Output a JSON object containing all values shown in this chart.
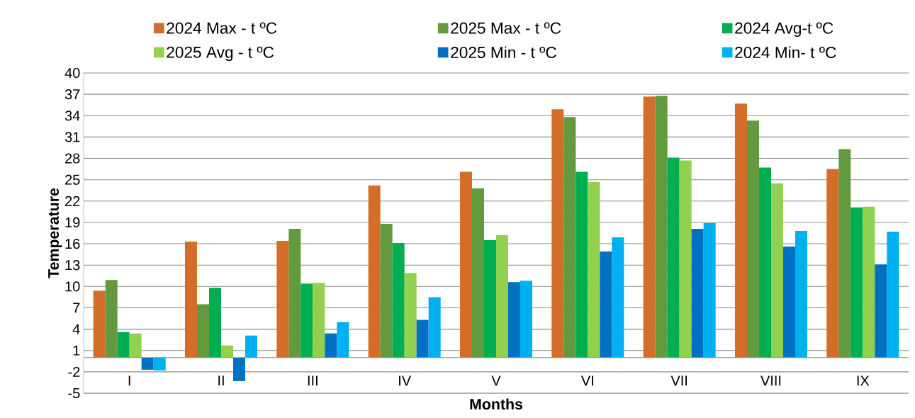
{
  "chart_data": {
    "type": "bar",
    "xlabel": "Months",
    "ylabel": "Temperature",
    "categories": [
      "I",
      "II",
      "III",
      "IV",
      "V",
      "VI",
      "VII",
      "VIII",
      "IX"
    ],
    "series": [
      {
        "name": "2024 Max - t ºC",
        "color": "#d26e2a",
        "values": [
          9.4,
          16.3,
          16.4,
          24.2,
          26.1,
          34.9,
          36.7,
          35.7,
          26.5
        ]
      },
      {
        "name": "2025 Max - t ºC",
        "color": "#629a3d",
        "values": [
          10.9,
          7.5,
          18.1,
          18.8,
          23.8,
          33.8,
          36.8,
          33.3,
          29.3
        ]
      },
      {
        "name": "2024 Avg-t ºC",
        "color": "#00ad4f",
        "values": [
          3.6,
          9.8,
          10.4,
          16.1,
          16.5,
          26.1,
          28.1,
          26.7,
          21.1
        ]
      },
      {
        "name": "2025 Avg - t ºC",
        "color": "#92d050",
        "values": [
          3.4,
          1.7,
          10.5,
          11.9,
          17.2,
          24.7,
          27.7,
          24.5,
          21.2
        ]
      },
      {
        "name": "2025 Min - t ºC",
        "color": "#0070c0",
        "values": [
          -1.7,
          -3.3,
          3.4,
          5.3,
          10.6,
          14.9,
          18.1,
          15.6,
          13.1
        ]
      },
      {
        "name": "2024 Min-  t ºC",
        "color": "#00b0f0",
        "values": [
          -1.8,
          3.1,
          5.0,
          8.5,
          10.8,
          16.9,
          18.9,
          17.8,
          17.7
        ]
      }
    ],
    "ylim": [
      -5,
      40
    ],
    "yticks": [
      -5,
      -2,
      1,
      4,
      7,
      10,
      13,
      16,
      19,
      22,
      25,
      28,
      31,
      34,
      37,
      40
    ],
    "grid": "y",
    "legend": "top"
  }
}
